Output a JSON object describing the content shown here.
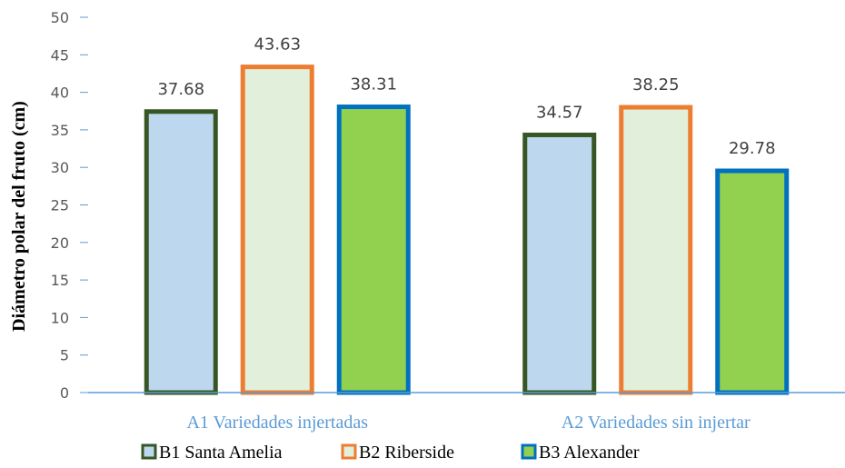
{
  "chart_data": {
    "type": "bar",
    "title": "",
    "xlabel": "",
    "ylabel": "Diámetro polar del fruto (cm)",
    "ylim": [
      0,
      50
    ],
    "ytick_step": 5,
    "grid": false,
    "legend_position": "bottom",
    "categories": [
      "A1 Variedades injertadas",
      "A2 Variedades sin injertar"
    ],
    "series": [
      {
        "name": "B1 Santa Amelia",
        "values": [
          37.68,
          34.57
        ],
        "fill": "#BDD7EE",
        "stroke": "#375623"
      },
      {
        "name": "B2 Riberside",
        "values": [
          43.63,
          38.25
        ],
        "fill": "#E2EFDA",
        "stroke": "#ED7D31"
      },
      {
        "name": "B3 Alexander",
        "values": [
          38.31,
          29.78
        ],
        "fill": "#92D050",
        "stroke": "#0070C0"
      }
    ],
    "axis_color": "#5B9BD5"
  }
}
